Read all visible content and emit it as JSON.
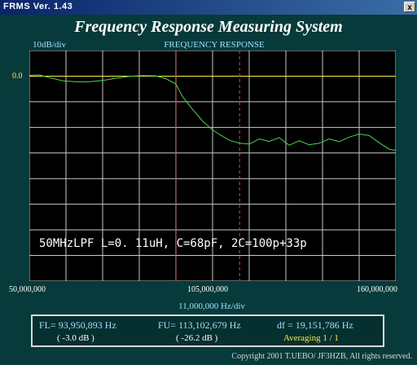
{
  "window": {
    "title": "FRMS  Ver. 1.43",
    "close_glyph": "x"
  },
  "app": {
    "title": "Frequency Response Measuring System"
  },
  "chart_header": {
    "scale": "10dB/div",
    "title": "FREQUENCY RESPONSE"
  },
  "ref_level": "0.0",
  "x_axis": {
    "left": "50,000,000",
    "middle": "105,000,000",
    "right": "160,000,000",
    "unit": "11,000,000  Hz/div"
  },
  "annotation": "50MHzLPF  L=0. 11uH, C=68pF, 2C=100p+33p",
  "readout": {
    "fl": "FL= 93,950,893  Hz",
    "fl_db": "( -3.0 dB )",
    "fu": "FU= 113,102,679  Hz",
    "fu_db": "( -26.2 dB )",
    "df": "df = 19,151,786  Hz",
    "averaging": "Averaging   1 / 1"
  },
  "copyright": "Copyright 2001 T.UEBO/ JF3HZB, All rights reserved.",
  "colors": {
    "trace": "#4bd64b",
    "ref_line": "#ffe94a",
    "marker_lower": "#e04040",
    "marker_upper": "#e04040",
    "grid": "#c8c8c8",
    "plot_bg": "#000000"
  },
  "chart_data": {
    "type": "line",
    "title": "FREQUENCY RESPONSE",
    "xlabel": "11,000,000  Hz/div",
    "ylabel": "10dB/div",
    "xlim": [
      50000000,
      160000000
    ],
    "ylim": [
      -80,
      10
    ],
    "x_ticks": [
      50000000,
      105000000,
      160000000
    ],
    "grid": true,
    "series": [
      {
        "x": [
          50000000,
          53000000,
          56000000,
          60000000,
          64000000,
          68000000,
          72000000,
          76000000,
          80000000,
          84000000,
          88000000,
          91000000,
          93950893,
          96000000,
          99000000,
          102000000,
          105000000,
          108000000,
          110000000,
          113102679,
          116000000,
          119000000,
          122000000,
          125000000,
          128000000,
          131000000,
          134000000,
          137000000,
          140000000,
          143000000,
          146000000,
          149000000,
          152000000,
          155000000,
          158000000,
          160000000
        ],
        "y": [
          0.3,
          0.5,
          -0.6,
          -1.8,
          -2.2,
          -2.2,
          -1.7,
          -0.8,
          -0.1,
          0.2,
          0.1,
          -1.0,
          -3.0,
          -8.0,
          -13.0,
          -17.5,
          -21.0,
          -23.5,
          -25.0,
          -26.2,
          -26.5,
          -24.5,
          -25.5,
          -24.0,
          -27.0,
          -25.2,
          -26.8,
          -26.2,
          -24.5,
          -25.6,
          -23.8,
          -22.6,
          -23.2,
          -26.0,
          -28.5,
          -29.0
        ]
      }
    ],
    "markers": [
      {
        "label": "FL",
        "x": 93950893,
        "style": "solid"
      },
      {
        "label": "FU",
        "x": 113102679,
        "style": "dashed"
      }
    ],
    "reference_line": {
      "y": 0.0
    }
  }
}
